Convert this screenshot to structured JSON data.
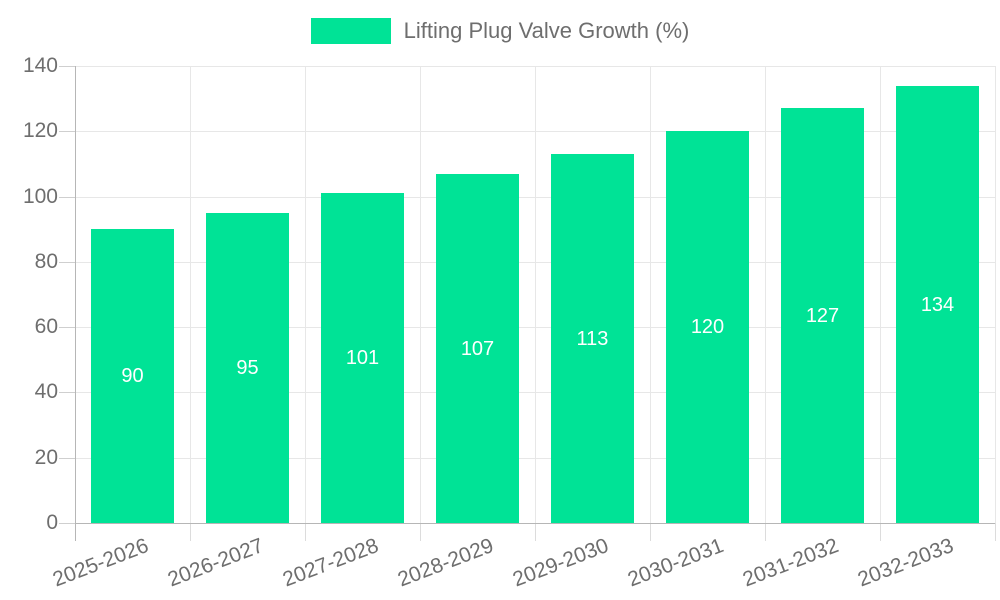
{
  "legend": {
    "label": "Lifting Plug Valve Growth (%)"
  },
  "chart_data": {
    "type": "bar",
    "title": "Lifting Plug Valve Growth (%)",
    "categories": [
      "2025-2026",
      "2026-2027",
      "2027-2028",
      "2028-2029",
      "2029-2030",
      "2030-2031",
      "2031-2032",
      "2032-2033"
    ],
    "values": [
      90,
      95,
      101,
      107,
      113,
      120,
      127,
      134
    ],
    "series": [
      {
        "name": "Lifting Plug Valve Growth (%)",
        "values": [
          90,
          95,
          101,
          107,
          113,
          120,
          127,
          134
        ]
      }
    ],
    "xlabel": "",
    "ylabel": "",
    "ylim": [
      0,
      140
    ],
    "y_ticks": [
      0,
      20,
      40,
      60,
      80,
      100,
      120,
      140
    ],
    "grid": true,
    "legend_position": "top",
    "value_labels": "inside-center",
    "colors": {
      "bar": "#00E396",
      "bar_label": "#ffffff",
      "axis_text": "#6e6e6e",
      "legend_text": "#6e6e6e",
      "gridline": "#e7e7e7",
      "axis_line": "#b6b6b6",
      "background": "#ffffff"
    }
  }
}
